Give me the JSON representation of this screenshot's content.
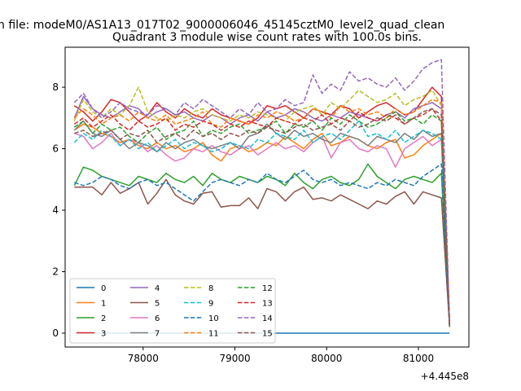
{
  "figure": {
    "suptitle": "n file: modeM0/AS1A13_017T02_9000006046_45145cztM0_level2_quad_clean"
  },
  "chart_data": {
    "type": "line",
    "title": "Quadrant 3 module wise count rates with 100.0s bins.",
    "xlabel": "",
    "ylabel": "",
    "x_offset_label": "+4.445e8",
    "x_offset": 444500000,
    "xlim": [
      77150,
      81550
    ],
    "ylim": [
      -0.45,
      9.3
    ],
    "xticks": [
      78000,
      79000,
      80000,
      81000
    ],
    "yticks": [
      0,
      2,
      4,
      6,
      8
    ],
    "grid": false,
    "legend_placement": "lower-left",
    "x_start": 77250,
    "x_step": 100,
    "x_last": 81340,
    "series": [
      {
        "name": "0",
        "color": "#1f77b4",
        "dash": "solid",
        "values": [
          0,
          0,
          0,
          0,
          0,
          0,
          0,
          0,
          0,
          0,
          0,
          0,
          0,
          0,
          0,
          0,
          0,
          0,
          0,
          0,
          0,
          0,
          0,
          0,
          0,
          0,
          0,
          0,
          0,
          0,
          0,
          0,
          0,
          0,
          0,
          0,
          0,
          0,
          0,
          0,
          0,
          0
        ]
      },
      {
        "name": "1",
        "color": "#ff7f0e",
        "dash": "solid",
        "values": [
          6.6,
          6.8,
          6.7,
          6.5,
          6.4,
          6.2,
          6.3,
          6.1,
          6.0,
          6.2,
          6.0,
          6.1,
          5.9,
          6.0,
          6.2,
          5.8,
          5.6,
          6.0,
          6.1,
          5.9,
          6.0,
          6.2,
          6.1,
          6.4,
          6.2,
          6.0,
          6.3,
          6.5,
          6.1,
          6.2,
          6.4,
          6.3,
          6.1,
          6.0,
          6.2,
          6.3,
          5.7,
          5.8,
          6.1,
          6.3,
          6.5,
          0.2
        ]
      },
      {
        "name": "2",
        "color": "#2ca02c",
        "dash": "solid",
        "values": [
          4.8,
          5.4,
          5.3,
          5.1,
          5.0,
          4.9,
          4.8,
          5.1,
          5.0,
          4.9,
          5.2,
          5.0,
          4.9,
          5.1,
          4.8,
          5.2,
          5.0,
          4.9,
          5.1,
          5.0,
          4.9,
          5.1,
          5.0,
          4.8,
          5.2,
          4.9,
          4.7,
          5.0,
          5.1,
          4.9,
          4.8,
          5.0,
          5.5,
          5.1,
          4.9,
          4.7,
          5.0,
          5.1,
          5.0,
          4.9,
          5.2,
          0.2
        ]
      },
      {
        "name": "3",
        "color": "#d62728",
        "dash": "solid",
        "values": [
          7.4,
          7.2,
          6.9,
          7.2,
          7.6,
          7.5,
          7.2,
          6.9,
          7.1,
          7.5,
          7.2,
          7.0,
          7.3,
          7.1,
          7.0,
          7.3,
          7.1,
          7.0,
          6.9,
          6.8,
          7.0,
          7.4,
          7.3,
          7.4,
          7.2,
          7.0,
          7.3,
          7.2,
          7.1,
          7.4,
          7.3,
          7.0,
          7.2,
          7.4,
          7.5,
          7.3,
          7.1,
          7.2,
          7.6,
          8.0,
          7.7,
          0.3
        ]
      },
      {
        "name": "4",
        "color": "#9467bd",
        "dash": "solid",
        "values": [
          7.0,
          7.7,
          7.3,
          7.1,
          7.0,
          7.2,
          7.4,
          7.3,
          7.0,
          7.2,
          7.3,
          7.1,
          7.2,
          7.0,
          6.9,
          7.1,
          7.0,
          6.8,
          7.0,
          7.1,
          6.9,
          7.2,
          7.0,
          7.1,
          7.3,
          7.2,
          7.0,
          6.9,
          7.1,
          7.0,
          7.2,
          7.1,
          7.0,
          6.9,
          7.1,
          7.2,
          7.0,
          7.3,
          7.4,
          7.5,
          7.3,
          0.3
        ]
      },
      {
        "name": "5",
        "color": "#8c564b",
        "dash": "solid",
        "values": [
          4.75,
          4.75,
          4.75,
          4.5,
          4.9,
          4.55,
          4.7,
          4.9,
          4.2,
          4.55,
          5.0,
          4.5,
          4.3,
          4.2,
          4.55,
          4.6,
          4.1,
          4.15,
          4.15,
          4.4,
          4.05,
          4.7,
          4.6,
          4.3,
          4.6,
          4.75,
          4.35,
          4.4,
          4.3,
          4.5,
          4.35,
          4.2,
          4.05,
          4.3,
          4.2,
          4.45,
          4.6,
          4.2,
          4.6,
          4.5,
          4.4,
          0.2
        ]
      },
      {
        "name": "6",
        "color": "#e377c2",
        "dash": "solid",
        "values": [
          6.5,
          6.4,
          6.0,
          6.2,
          6.5,
          6.1,
          6.3,
          6.2,
          5.9,
          6.1,
          5.8,
          5.6,
          5.7,
          6.0,
          5.9,
          6.1,
          5.9,
          5.8,
          6.0,
          6.1,
          5.8,
          6.0,
          6.2,
          6.0,
          6.1,
          5.9,
          6.2,
          6.4,
          5.7,
          6.2,
          6.3,
          6.0,
          5.9,
          6.1,
          6.0,
          5.4,
          6.0,
          6.2,
          6.4,
          6.1,
          6.3,
          0.2
        ]
      },
      {
        "name": "7",
        "color": "#7f7f7f",
        "dash": "solid",
        "values": [
          6.6,
          6.9,
          6.5,
          6.4,
          6.6,
          6.3,
          6.0,
          6.2,
          6.1,
          5.9,
          6.2,
          6.0,
          6.2,
          6.3,
          6.1,
          6.0,
          6.1,
          6.2,
          6.0,
          6.4,
          6.5,
          6.8,
          6.5,
          6.3,
          6.6,
          6.4,
          6.5,
          6.3,
          6.2,
          6.5,
          6.4,
          6.3,
          6.1,
          6.4,
          6.3,
          6.2,
          6.5,
          6.3,
          6.6,
          6.4,
          6.5,
          0.2
        ]
      },
      {
        "name": "8",
        "color": "#bcbd22",
        "dash": "dashed",
        "values": [
          6.9,
          7.6,
          7.2,
          7.0,
          7.3,
          7.1,
          7.4,
          8.0,
          7.2,
          7.0,
          6.9,
          7.1,
          7.0,
          7.2,
          7.3,
          7.1,
          7.0,
          6.9,
          7.1,
          7.0,
          7.2,
          7.1,
          7.0,
          6.9,
          7.2,
          7.3,
          7.4,
          7.1,
          7.5,
          7.3,
          7.6,
          7.9,
          7.7,
          7.5,
          7.6,
          7.8,
          7.4,
          7.6,
          7.7,
          7.9,
          7.4,
          0.3
        ]
      },
      {
        "name": "9",
        "color": "#17becf",
        "dash": "dashed",
        "values": [
          6.2,
          6.5,
          6.3,
          6.6,
          6.4,
          6.1,
          6.3,
          6.0,
          6.2,
          5.9,
          6.1,
          6.3,
          6.0,
          6.2,
          6.1,
          5.9,
          6.0,
          6.2,
          6.1,
          6.0,
          6.3,
          6.2,
          6.5,
          6.4,
          6.3,
          6.6,
          6.2,
          6.4,
          6.5,
          6.3,
          6.6,
          6.9,
          6.4,
          6.5,
          6.3,
          6.6,
          6.2,
          6.4,
          6.6,
          6.5,
          6.3,
          0.2
        ]
      },
      {
        "name": "10",
        "color": "#1f77b4",
        "dash": "dashed",
        "values": [
          4.9,
          4.8,
          4.9,
          5.1,
          5.0,
          4.8,
          4.7,
          4.9,
          5.0,
          4.8,
          4.9,
          4.7,
          4.5,
          4.3,
          4.6,
          4.9,
          5.0,
          4.9,
          4.8,
          5.0,
          4.9,
          5.2,
          5.0,
          4.9,
          5.1,
          5.3,
          5.0,
          4.9,
          5.0,
          4.8,
          4.9,
          4.8,
          4.7,
          4.9,
          4.8,
          5.0,
          4.9,
          4.8,
          5.1,
          5.3,
          5.5,
          0.2
        ]
      },
      {
        "name": "11",
        "color": "#ff7f0e",
        "dash": "dashed",
        "values": [
          7.0,
          7.3,
          7.1,
          6.8,
          7.0,
          7.1,
          6.9,
          7.2,
          7.0,
          6.9,
          7.1,
          6.8,
          6.9,
          7.0,
          7.2,
          6.8,
          6.7,
          7.0,
          6.9,
          6.8,
          7.1,
          7.0,
          7.2,
          7.1,
          6.9,
          7.0,
          7.3,
          7.2,
          7.0,
          7.4,
          7.2,
          7.3,
          7.1,
          7.2,
          7.0,
          7.3,
          7.1,
          7.2,
          7.4,
          7.6,
          7.5,
          0.3
        ]
      },
      {
        "name": "12",
        "color": "#2ca02c",
        "dash": "dashed",
        "values": [
          6.7,
          6.9,
          6.5,
          6.8,
          6.6,
          6.7,
          6.4,
          6.2,
          6.5,
          6.7,
          6.3,
          6.5,
          6.6,
          6.9,
          6.4,
          6.6,
          6.5,
          6.7,
          6.8,
          6.5,
          6.6,
          6.7,
          6.9,
          6.5,
          6.8,
          6.7,
          6.9,
          6.6,
          7.0,
          6.8,
          7.1,
          6.9,
          6.7,
          6.8,
          7.0,
          7.2,
          6.9,
          7.0,
          6.8,
          7.1,
          6.9,
          0.2
        ]
      },
      {
        "name": "13",
        "color": "#d62728",
        "dash": "dashed",
        "values": [
          6.8,
          7.0,
          6.7,
          6.9,
          7.1,
          6.8,
          6.6,
          6.9,
          6.7,
          6.8,
          7.0,
          6.6,
          6.8,
          6.7,
          6.9,
          6.8,
          6.6,
          6.8,
          6.7,
          6.9,
          6.8,
          6.7,
          7.0,
          6.9,
          6.8,
          7.0,
          6.9,
          7.1,
          6.8,
          7.0,
          6.9,
          7.2,
          7.0,
          6.9,
          7.1,
          7.0,
          6.8,
          7.0,
          7.1,
          7.3,
          6.9,
          0.2
        ]
      },
      {
        "name": "14",
        "color": "#9467bd",
        "dash": "dashed",
        "values": [
          7.5,
          7.8,
          7.3,
          7.0,
          7.2,
          7.5,
          7.3,
          7.2,
          7.1,
          7.4,
          7.3,
          7.1,
          7.5,
          7.3,
          7.6,
          7.4,
          7.2,
          7.0,
          7.3,
          7.1,
          7.5,
          7.2,
          7.3,
          7.6,
          7.4,
          7.5,
          8.4,
          7.8,
          8.1,
          7.9,
          8.5,
          8.2,
          8.3,
          8.1,
          8.0,
          8.3,
          7.9,
          8.2,
          8.6,
          8.8,
          8.9,
          0.3
        ]
      },
      {
        "name": "15",
        "color": "#8c564b",
        "dash": "dashed",
        "values": [
          6.5,
          6.6,
          6.4,
          6.5,
          6.6,
          6.3,
          6.5,
          6.4,
          6.6,
          6.2,
          6.4,
          6.5,
          6.3,
          6.6,
          6.4,
          6.5,
          6.3,
          6.5,
          6.4,
          6.6,
          6.5,
          6.7,
          6.6,
          6.5,
          6.7,
          6.8,
          6.6,
          6.7,
          6.8,
          6.6,
          6.9,
          6.7,
          6.8,
          7.0,
          6.9,
          7.1,
          6.8,
          7.0,
          7.2,
          7.3,
          7.1,
          0.2
        ]
      }
    ]
  }
}
